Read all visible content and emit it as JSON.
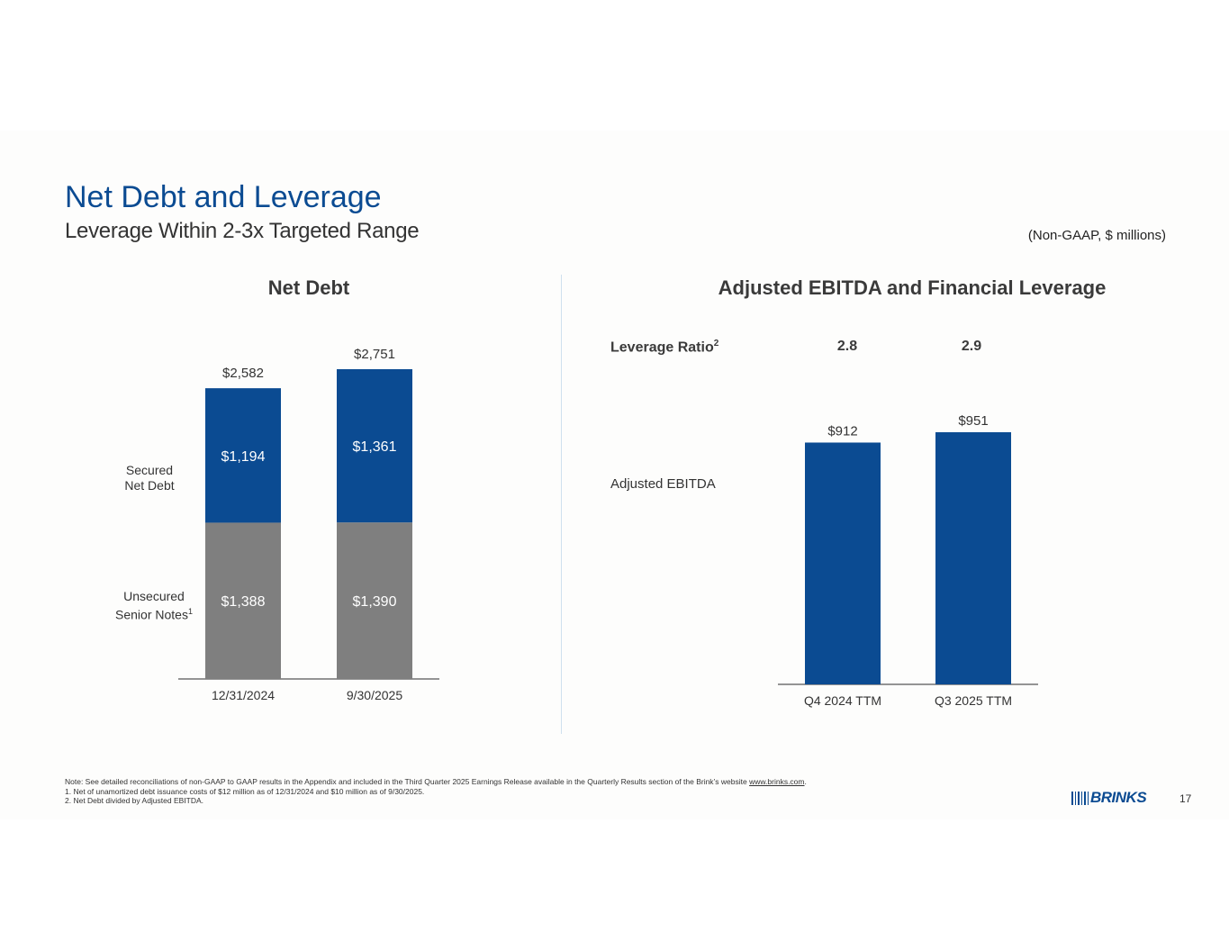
{
  "header": {
    "title": "Net Debt and Leverage",
    "subtitle": "Leverage Within 2-3x Targeted Range",
    "units": "(Non-GAAP, $ millions)"
  },
  "left_panel": {
    "title": "Net Debt",
    "secured_label": "Secured Net Debt",
    "unsecured_label": "Unsecured Senior Notes",
    "unsecured_footnote": "1"
  },
  "right_panel": {
    "title": "Adjusted EBITDA and Financial Leverage",
    "leverage_label": "Leverage Ratio",
    "leverage_footnote": "2",
    "leverage_values": [
      "2.8",
      "2.9"
    ],
    "ebitda_label": "Adjusted EBITDA"
  },
  "chart_data": [
    {
      "type": "bar",
      "stacked": true,
      "title": "Net Debt",
      "categories": [
        "12/31/2024",
        "9/30/2025"
      ],
      "series": [
        {
          "name": "Unsecured Senior Notes",
          "values": [
            1388,
            1390
          ],
          "labels": [
            "$1,388",
            "$1,390"
          ],
          "color": "#7f7f7f"
        },
        {
          "name": "Secured Net Debt",
          "values": [
            1194,
            1361
          ],
          "labels": [
            "$1,194",
            "$1,361"
          ],
          "color": "#0b4b92"
        }
      ],
      "totals": [
        2582,
        2751
      ],
      "total_labels": [
        "$2,582",
        "$2,751"
      ],
      "ylim": [
        0,
        2751
      ]
    },
    {
      "type": "bar",
      "title": "Adjusted EBITDA and Financial Leverage",
      "categories": [
        "Q4 2024 TTM",
        "Q3 2025 TTM"
      ],
      "series": [
        {
          "name": "Adjusted EBITDA",
          "values": [
            912,
            951
          ],
          "labels": [
            "$912",
            "$951"
          ],
          "color": "#0b4b92"
        }
      ],
      "ylim": [
        0,
        951
      ]
    }
  ],
  "footer": {
    "note_prefix": "Note: See detailed reconciliations of non-GAAP to GAAP results in the Appendix and included in the Third Quarter 2025 Earnings Release available in the Quarterly Results section of the Brink’s website ",
    "note_link": "www.brinks.com",
    "note_suffix": ".",
    "footnote1": "1.  Net of unamortized debt issuance costs of $12 million as of 12/31/2024 and $10 million as of 9/30/2025.",
    "footnote2": "2.  Net Debt divided by Adjusted EBITDA.",
    "logo_text": "BRINKS",
    "page_number": "17"
  },
  "colors": {
    "brand_blue": "#0b4b92",
    "gray": "#7f7f7f",
    "divider": "#cfe0ee"
  }
}
